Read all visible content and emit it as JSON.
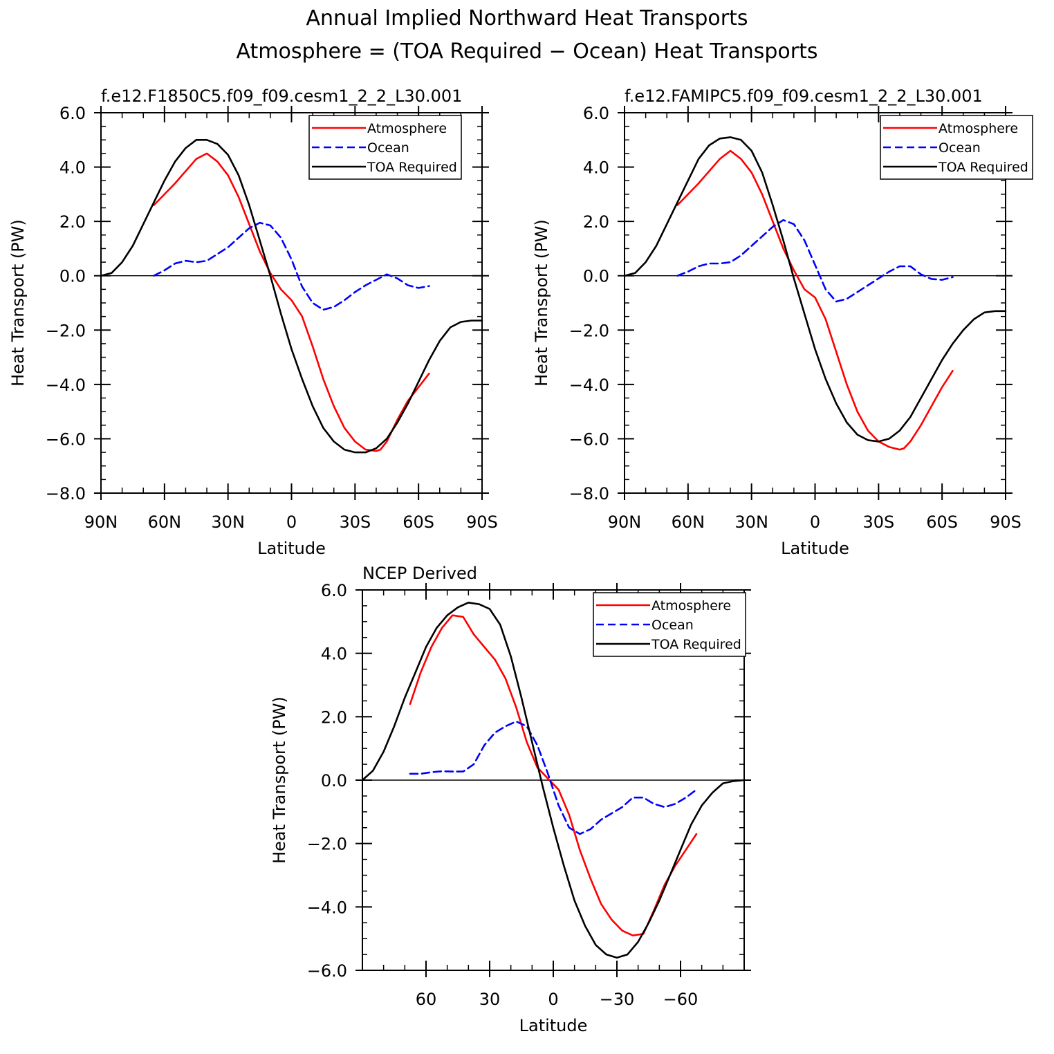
{
  "figure": {
    "title_line1": "Annual Implied Northward Heat Transports",
    "title_line2": "Atmosphere = (TOA Required − Ocean) Heat Transports"
  },
  "colors": {
    "atmosphere": "#ff0000",
    "ocean": "#0000ff",
    "toa": "#000000"
  },
  "chart_data": [
    {
      "type": "line",
      "title": "f.e12.F1850C5.f09_f09.cesm1_2_2_L30.001",
      "xlabel": "Latitude",
      "ylabel": "Heat Transport (PW)",
      "xlim": [
        90,
        -90
      ],
      "ylim": [
        -8,
        6
      ],
      "xticks": [
        90,
        60,
        30,
        0,
        -30,
        -60,
        -90
      ],
      "xtick_labels": [
        "90N",
        "60N",
        "30N",
        "0",
        "30S",
        "60S",
        "90S"
      ],
      "yticks": [
        6,
        4,
        2,
        0,
        -2,
        -4,
        -6,
        -8
      ],
      "ytick_labels": [
        "6.0",
        "4.0",
        "2.0",
        "0.0",
        "−2.0",
        "−4.0",
        "−6.0",
        "−8.0"
      ],
      "legend": [
        "Atmosphere",
        "Ocean",
        "TOA Required"
      ],
      "legend_position": "top-right",
      "series": [
        {
          "name": "Atmosphere",
          "style": "solid",
          "color": "atmosphere",
          "x": [
            65,
            55,
            45,
            40,
            35,
            30,
            25,
            20,
            15,
            10,
            5,
            0,
            -5,
            -10,
            -15,
            -20,
            -25,
            -30,
            -35,
            -40,
            -42,
            -45,
            -50,
            -55,
            -60,
            -65
          ],
          "y": [
            2.6,
            3.4,
            4.3,
            4.5,
            4.2,
            3.7,
            2.9,
            1.9,
            0.9,
            0.1,
            -0.5,
            -0.9,
            -1.5,
            -2.6,
            -3.8,
            -4.8,
            -5.6,
            -6.1,
            -6.4,
            -6.45,
            -6.4,
            -6.1,
            -5.3,
            -4.6,
            -4.1,
            -3.6
          ]
        },
        {
          "name": "Ocean",
          "style": "dashed",
          "color": "ocean",
          "x": [
            65,
            60,
            55,
            50,
            45,
            40,
            35,
            30,
            25,
            20,
            15,
            10,
            5,
            0,
            -5,
            -10,
            -15,
            -20,
            -25,
            -30,
            -35,
            -40,
            -45,
            -50,
            -55,
            -60,
            -65
          ],
          "y": [
            0.0,
            0.2,
            0.45,
            0.55,
            0.5,
            0.55,
            0.8,
            1.05,
            1.4,
            1.75,
            1.95,
            1.85,
            1.4,
            0.6,
            -0.4,
            -1.0,
            -1.25,
            -1.15,
            -0.9,
            -0.6,
            -0.35,
            -0.15,
            0.05,
            -0.1,
            -0.35,
            -0.45,
            -0.38
          ]
        },
        {
          "name": "TOA Required",
          "style": "solid",
          "color": "toa",
          "x": [
            90,
            85,
            80,
            75,
            70,
            65,
            60,
            55,
            50,
            45,
            40,
            35,
            30,
            25,
            20,
            15,
            10,
            5,
            0,
            -5,
            -10,
            -15,
            -20,
            -25,
            -30,
            -35,
            -40,
            -45,
            -50,
            -55,
            -60,
            -65,
            -70,
            -75,
            -80,
            -85,
            -90
          ],
          "y": [
            0.0,
            0.1,
            0.5,
            1.1,
            1.9,
            2.7,
            3.5,
            4.2,
            4.7,
            5.0,
            5.0,
            4.85,
            4.45,
            3.7,
            2.6,
            1.3,
            0.0,
            -1.4,
            -2.7,
            -3.8,
            -4.8,
            -5.6,
            -6.1,
            -6.4,
            -6.5,
            -6.5,
            -6.35,
            -6.0,
            -5.4,
            -4.7,
            -3.9,
            -3.1,
            -2.4,
            -1.9,
            -1.7,
            -1.65,
            -1.65
          ]
        }
      ]
    },
    {
      "type": "line",
      "title": "f.e12.FAMIPC5.f09_f09.cesm1_2_2_L30.001",
      "xlabel": "Latitude",
      "ylabel": "Heat Transport (PW)",
      "xlim": [
        90,
        -90
      ],
      "ylim": [
        -8,
        6
      ],
      "xticks": [
        90,
        60,
        30,
        0,
        -30,
        -60,
        -90
      ],
      "xtick_labels": [
        "90N",
        "60N",
        "30N",
        "0",
        "30S",
        "60S",
        "90S"
      ],
      "yticks": [
        6,
        4,
        2,
        0,
        -2,
        -4,
        -6,
        -8
      ],
      "ytick_labels": [
        "6.0",
        "4.0",
        "2.0",
        "0.0",
        "−2.0",
        "−4.0",
        "−6.0",
        "−8.0"
      ],
      "legend": [
        "Atmosphere",
        "Ocean",
        "TOA Required"
      ],
      "legend_position": "top-right",
      "series": [
        {
          "name": "Atmosphere",
          "style": "solid",
          "color": "atmosphere",
          "x": [
            65,
            55,
            45,
            40,
            35,
            30,
            25,
            20,
            15,
            10,
            5,
            0,
            -5,
            -10,
            -15,
            -20,
            -25,
            -30,
            -35,
            -40,
            -42,
            -45,
            -50,
            -55,
            -60,
            -65
          ],
          "y": [
            2.6,
            3.4,
            4.3,
            4.6,
            4.3,
            3.8,
            3.0,
            2.0,
            1.0,
            0.2,
            -0.5,
            -0.8,
            -1.6,
            -2.8,
            -4.0,
            -5.0,
            -5.7,
            -6.1,
            -6.3,
            -6.4,
            -6.35,
            -6.1,
            -5.5,
            -4.8,
            -4.1,
            -3.5
          ]
        },
        {
          "name": "Ocean",
          "style": "dashed",
          "color": "ocean",
          "x": [
            65,
            60,
            55,
            50,
            45,
            40,
            35,
            30,
            25,
            20,
            15,
            10,
            5,
            0,
            -5,
            -10,
            -15,
            -20,
            -25,
            -30,
            -35,
            -40,
            -45,
            -50,
            -55,
            -60,
            -65
          ],
          "y": [
            0.0,
            0.15,
            0.35,
            0.45,
            0.45,
            0.5,
            0.75,
            1.1,
            1.45,
            1.8,
            2.05,
            1.9,
            1.3,
            0.4,
            -0.5,
            -0.95,
            -0.85,
            -0.6,
            -0.35,
            -0.1,
            0.15,
            0.35,
            0.35,
            0.05,
            -0.12,
            -0.15,
            -0.05
          ]
        },
        {
          "name": "TOA Required",
          "style": "solid",
          "color": "toa",
          "x": [
            90,
            85,
            80,
            75,
            70,
            65,
            60,
            55,
            50,
            45,
            40,
            35,
            30,
            25,
            20,
            15,
            10,
            5,
            0,
            -5,
            -10,
            -15,
            -20,
            -25,
            -30,
            -35,
            -40,
            -45,
            -50,
            -55,
            -60,
            -65,
            -70,
            -75,
            -80,
            -85,
            -90
          ],
          "y": [
            0.0,
            0.1,
            0.5,
            1.1,
            1.9,
            2.7,
            3.5,
            4.3,
            4.8,
            5.05,
            5.1,
            5.0,
            4.6,
            3.8,
            2.6,
            1.3,
            -0.1,
            -1.4,
            -2.7,
            -3.8,
            -4.7,
            -5.4,
            -5.85,
            -6.05,
            -6.1,
            -6.0,
            -5.7,
            -5.2,
            -4.5,
            -3.8,
            -3.1,
            -2.5,
            -2.0,
            -1.6,
            -1.35,
            -1.3,
            -1.3
          ]
        }
      ]
    },
    {
      "type": "line",
      "title": "NCEP Derived",
      "xlabel": "Latitude",
      "ylabel": "Heat Transport (PW)",
      "xlim": [
        90,
        -90
      ],
      "ylim": [
        -6,
        6
      ],
      "xticks": [
        60,
        30,
        0,
        -30,
        -60
      ],
      "xtick_labels": [
        "60",
        "30",
        "0",
        "−30",
        "−60"
      ],
      "yticks": [
        6,
        4,
        2,
        0,
        -2,
        -4,
        -6
      ],
      "ytick_labels": [
        "6.0",
        "4.0",
        "2.0",
        "0.0",
        "−2.0",
        "−4.0",
        "−6.0"
      ],
      "legend": [
        "Atmosphere",
        "Ocean",
        "TOA Required"
      ],
      "legend_position": "top-right",
      "series": [
        {
          "name": "Atmosphere",
          "style": "solid",
          "color": "atmosphere",
          "x": [
            67.5,
            62.5,
            57.5,
            52.5,
            47.5,
            42.5,
            37.5,
            32.5,
            27.5,
            22.5,
            17.5,
            12.5,
            7.5,
            2.5,
            -2.5,
            -7.5,
            -12.5,
            -17.5,
            -22.5,
            -27.5,
            -32.5,
            -37.5,
            -42.5,
            -47.5,
            -52.5,
            -57.5,
            -62.5,
            -67.5
          ],
          "y": [
            2.4,
            3.4,
            4.2,
            4.8,
            5.2,
            5.15,
            4.6,
            4.2,
            3.8,
            3.2,
            2.3,
            1.2,
            0.4,
            0.05,
            -0.3,
            -1.1,
            -2.2,
            -3.1,
            -3.9,
            -4.4,
            -4.75,
            -4.9,
            -4.85,
            -4.1,
            -3.3,
            -2.7,
            -2.2,
            -1.7
          ]
        },
        {
          "name": "Ocean",
          "style": "dashed",
          "color": "ocean",
          "x": [
            67.5,
            62.5,
            57.5,
            52.5,
            47.5,
            42.5,
            37.5,
            32.5,
            27.5,
            22.5,
            17.5,
            12.5,
            7.5,
            2.5,
            -2.5,
            -7.5,
            -12.5,
            -17.5,
            -22.5,
            -27.5,
            -32.5,
            -37.5,
            -42.5,
            -47.5,
            -52.5,
            -57.5,
            -62.5,
            -67.5
          ],
          "y": [
            0.2,
            0.2,
            0.25,
            0.28,
            0.27,
            0.27,
            0.5,
            1.1,
            1.5,
            1.7,
            1.85,
            1.7,
            1.1,
            0.2,
            -0.8,
            -1.5,
            -1.7,
            -1.55,
            -1.25,
            -1.05,
            -0.85,
            -0.55,
            -0.55,
            -0.75,
            -0.85,
            -0.75,
            -0.55,
            -0.3
          ]
        },
        {
          "name": "TOA Required",
          "style": "solid",
          "color": "toa",
          "x": [
            90,
            85,
            80,
            75,
            70,
            65,
            60,
            55,
            50,
            45,
            40,
            35,
            30,
            25,
            20,
            15,
            10,
            5,
            0,
            -5,
            -10,
            -15,
            -20,
            -25,
            -30,
            -35,
            -40,
            -45,
            -50,
            -55,
            -60,
            -65,
            -70,
            -75,
            -80,
            -85,
            -90
          ],
          "y": [
            0.0,
            0.3,
            0.9,
            1.7,
            2.6,
            3.4,
            4.2,
            4.8,
            5.2,
            5.45,
            5.6,
            5.55,
            5.4,
            4.9,
            3.9,
            2.6,
            1.2,
            -0.2,
            -1.5,
            -2.7,
            -3.8,
            -4.6,
            -5.2,
            -5.5,
            -5.6,
            -5.5,
            -5.1,
            -4.5,
            -3.8,
            -3.0,
            -2.2,
            -1.4,
            -0.8,
            -0.4,
            -0.1,
            -0.03,
            0.0
          ]
        }
      ]
    }
  ]
}
